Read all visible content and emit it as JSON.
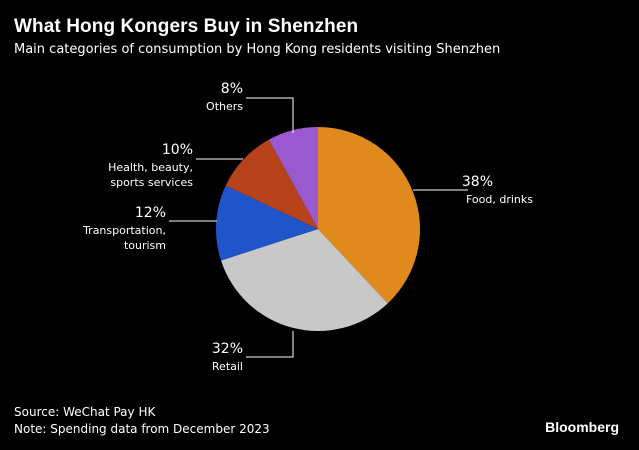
{
  "header": {
    "title": "What Hong Kongers Buy in Shenzhen",
    "subtitle": "Main categories of consumption by Hong Kong residents visiting Shenzhen"
  },
  "footer": {
    "source": "Source: WeChat Pay HK",
    "note": "Note: Spending data from December 2023",
    "brand": "Bloomberg"
  },
  "chart_data": {
    "type": "pie",
    "title": "What Hong Kongers Buy in Shenzhen",
    "subtitle": "Main categories of consumption by Hong Kong residents visiting Shenzhen",
    "slices": [
      {
        "label": "Food, drinks",
        "value": 38,
        "value_label": "38%",
        "label_lines": [
          "Food, drinks"
        ],
        "color": "#e08a1e"
      },
      {
        "label": "Retail",
        "value": 32,
        "value_label": "32%",
        "label_lines": [
          "Retail"
        ],
        "color": "#c8c8c8"
      },
      {
        "label": "Transportation, tourism",
        "value": 12,
        "value_label": "12%",
        "label_lines": [
          "Transportation,",
          "tourism"
        ],
        "color": "#1f55c9"
      },
      {
        "label": "Health, beauty, sports services",
        "value": 10,
        "value_label": "10%",
        "label_lines": [
          "Health, beauty,",
          "sports services"
        ],
        "color": "#b8421a"
      },
      {
        "label": "Others",
        "value": 8,
        "value_label": "8%",
        "label_lines": [
          "Others"
        ],
        "color": "#9b59cf"
      }
    ],
    "start_position": "12 o'clock",
    "direction": "clockwise",
    "label_line_color": "#ffffff"
  }
}
